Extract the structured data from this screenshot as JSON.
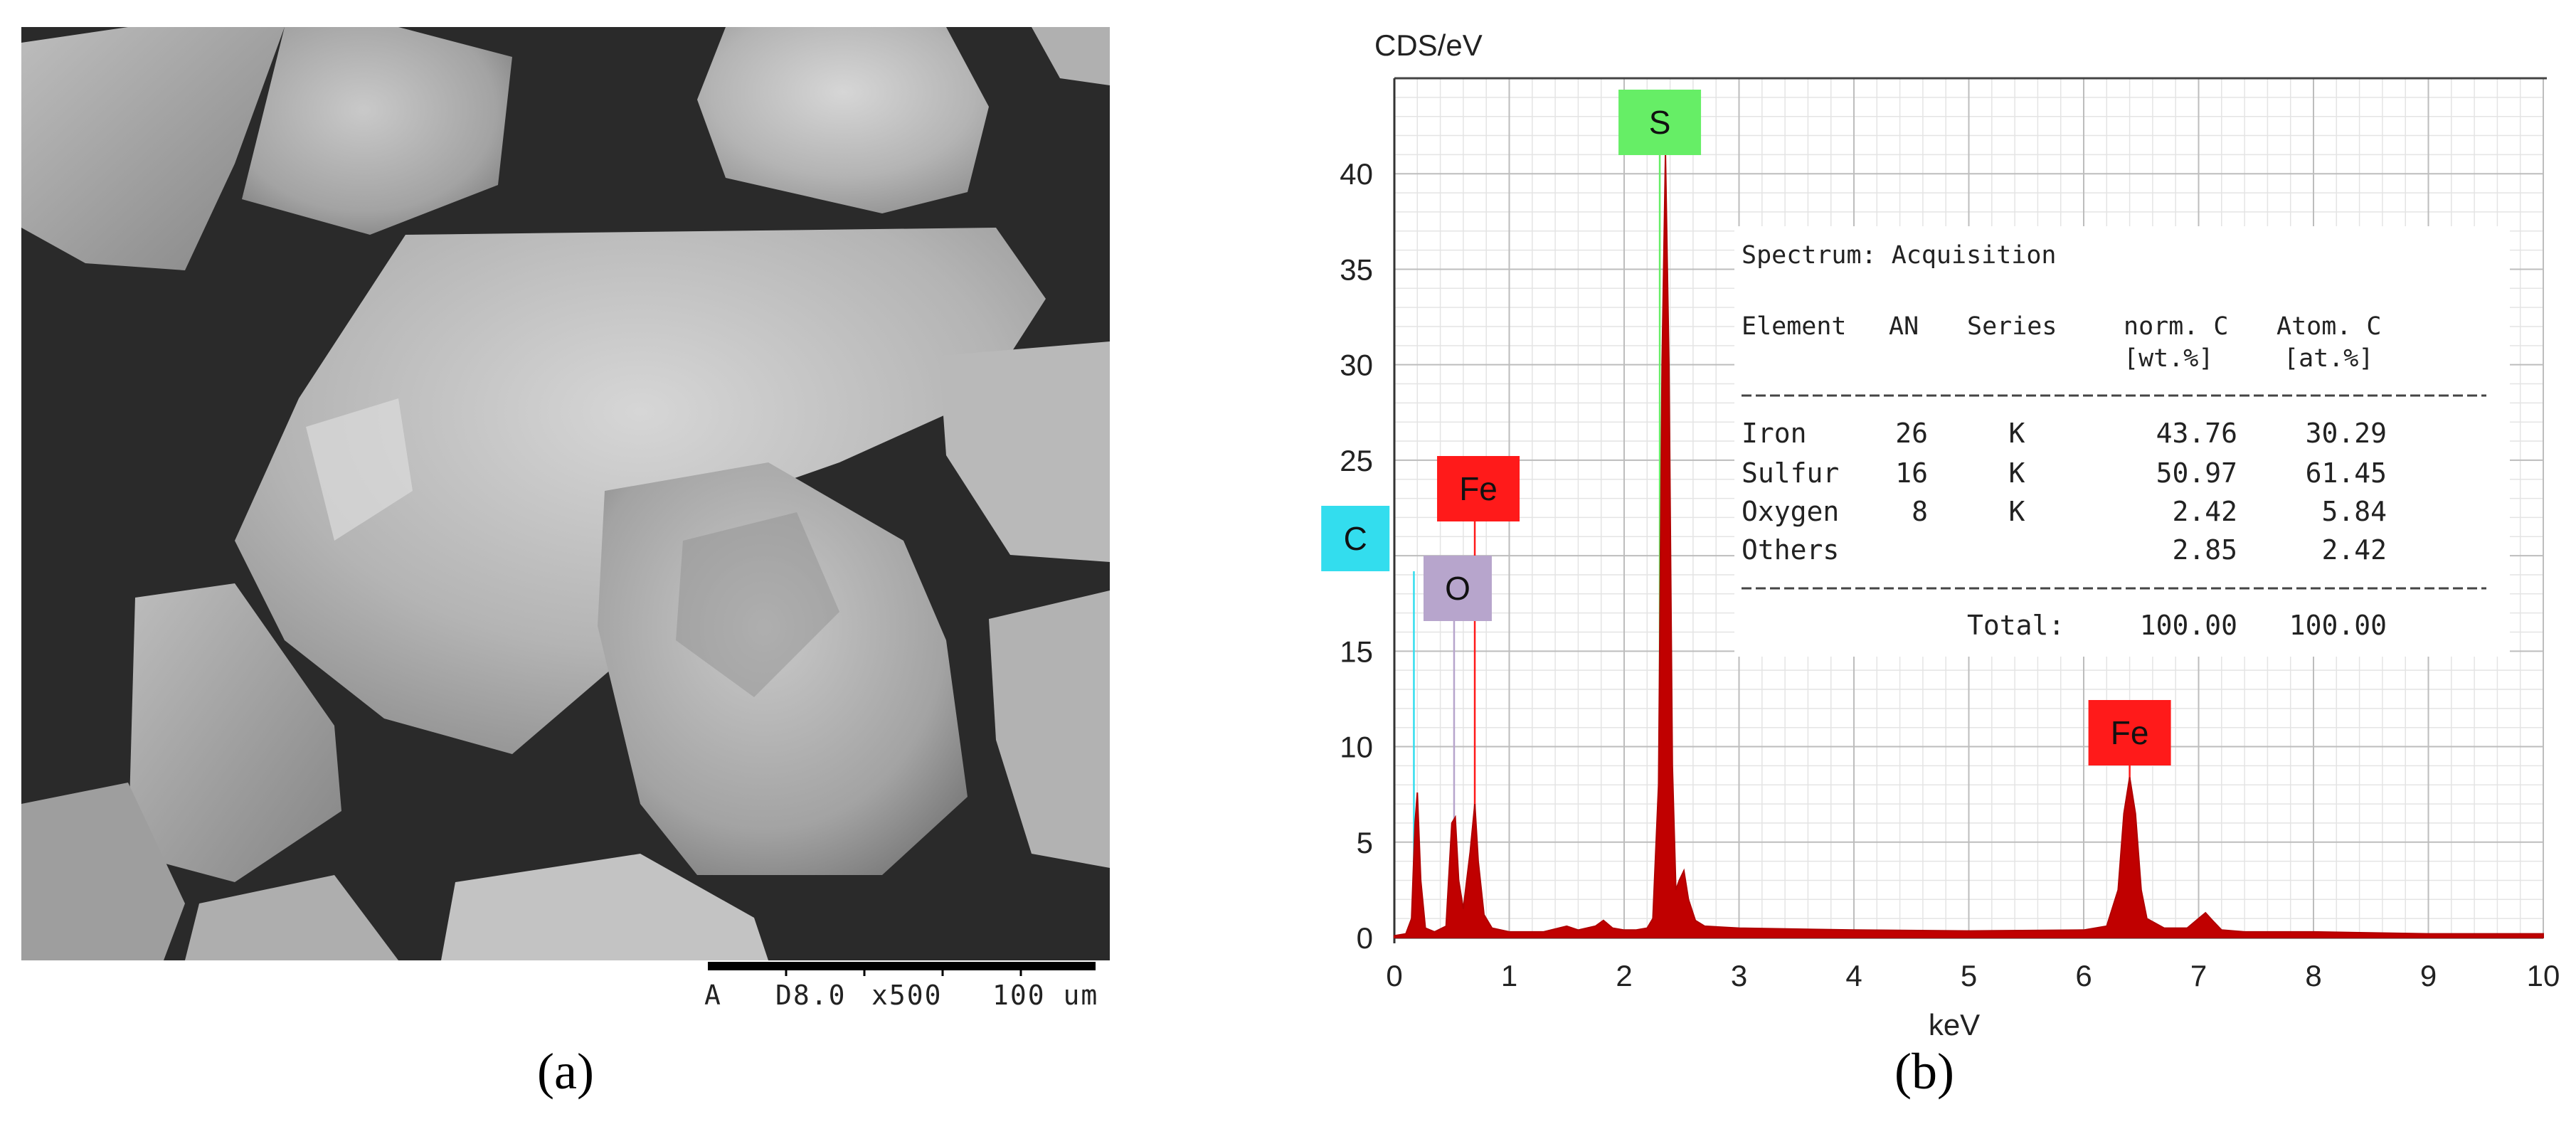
{
  "panel_a": {
    "label": "(a)",
    "scalebar": {
      "mode": "A",
      "kv": "D8.0",
      "magnification": "x500",
      "length": "100 um"
    }
  },
  "panel_b": {
    "label": "(b)"
  },
  "chart_data": {
    "type": "line",
    "title": "",
    "ylabel": "CDS/eV",
    "xlabel": "keV",
    "xlim": [
      0,
      10
    ],
    "ylim": [
      0,
      45
    ],
    "xticks": [
      0,
      1,
      2,
      3,
      4,
      5,
      6,
      7,
      8,
      9,
      10
    ],
    "yticks": [
      0,
      5,
      10,
      15,
      20,
      25,
      30,
      35,
      40
    ],
    "grid": true,
    "series": [
      {
        "x": [
          0,
          0.1,
          0.15,
          0.18,
          0.2,
          0.23,
          0.27,
          0.35,
          0.45,
          0.5,
          0.53,
          0.56,
          0.6,
          0.66,
          0.7,
          0.73,
          0.78,
          0.85,
          1.0,
          1.3,
          1.5,
          1.6,
          1.75,
          1.82,
          1.9,
          2.0,
          2.1,
          2.2,
          2.25,
          2.3,
          2.33,
          2.36,
          2.39,
          2.42,
          2.45,
          2.48,
          2.52,
          2.56,
          2.62,
          2.7,
          3.0,
          4.0,
          5.0,
          6.0,
          6.2,
          6.3,
          6.35,
          6.4,
          6.45,
          6.5,
          6.55,
          6.7,
          6.9,
          7.0,
          7.06,
          7.12,
          7.2,
          7.4,
          8.0,
          9.0,
          10.0
        ],
        "y": [
          0.1,
          0.2,
          1.0,
          6.0,
          7.6,
          3.0,
          0.5,
          0.3,
          0.6,
          6.0,
          6.3,
          3.0,
          1.5,
          4.5,
          7.0,
          4.0,
          1.2,
          0.5,
          0.3,
          0.3,
          0.6,
          0.4,
          0.6,
          0.9,
          0.5,
          0.4,
          0.4,
          0.5,
          1.0,
          8.0,
          30.0,
          41.0,
          30.0,
          9.0,
          2.5,
          3.0,
          3.5,
          2.0,
          0.9,
          0.6,
          0.5,
          0.4,
          0.35,
          0.4,
          0.6,
          2.5,
          6.5,
          8.4,
          6.5,
          2.5,
          1.0,
          0.5,
          0.5,
          1.0,
          1.3,
          0.9,
          0.4,
          0.3,
          0.3,
          0.2,
          0.2
        ]
      }
    ],
    "peak_labels": [
      {
        "text": "S",
        "x": 2.31,
        "color": "#66ee66"
      },
      {
        "text": "Fe",
        "x": 0.7,
        "color": "#ff1a1a"
      },
      {
        "text": "C",
        "x": 0.28,
        "color": "#33ddee"
      },
      {
        "text": "O",
        "x": 0.52,
        "color": "#b7a5cc"
      },
      {
        "text": "Fe",
        "x": 6.4,
        "color": "#ff1a1a"
      }
    ],
    "table": {
      "title": "Spectrum: Acquisition",
      "headers": [
        "Element",
        "AN",
        "Series",
        "norm. C",
        "Atom. C"
      ],
      "units": [
        "",
        "",
        "",
        "[wt.%]",
        "[at.%]"
      ],
      "rows": [
        [
          "Iron",
          "26",
          "K",
          "43.76",
          "30.29"
        ],
        [
          "Sulfur",
          "16",
          "K",
          "50.97",
          "61.45"
        ],
        [
          "Oxygen",
          "8",
          "K",
          "2.42",
          "5.84"
        ],
        [
          "Others",
          "",
          "",
          "2.85",
          "2.42"
        ]
      ],
      "total_label": "Total:",
      "total_values": [
        "100.00",
        "100.00"
      ]
    }
  }
}
